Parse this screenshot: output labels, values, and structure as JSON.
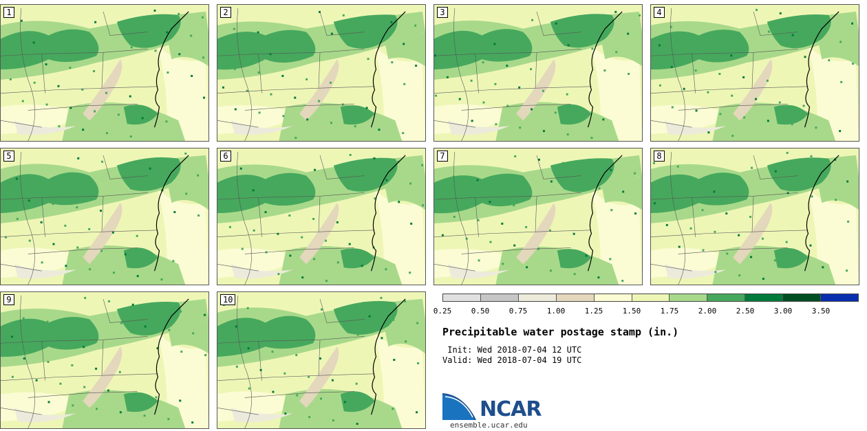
{
  "panels": [
    {
      "label": "1"
    },
    {
      "label": "2"
    },
    {
      "label": "3"
    },
    {
      "label": "4"
    },
    {
      "label": "5"
    },
    {
      "label": "6"
    },
    {
      "label": "7"
    },
    {
      "label": "8"
    },
    {
      "label": "9"
    },
    {
      "label": "10"
    }
  ],
  "colorbar": {
    "ticks": [
      "0.25",
      "0.50",
      "0.75",
      "1.00",
      "1.25",
      "1.50",
      "1.75",
      "2.00",
      "2.50",
      "3.00",
      "3.50"
    ],
    "colors": [
      "#e0e0e0",
      "#c6c6c6",
      "#ecebdb",
      "#e3d7bc",
      "#fbfcd4",
      "#eef6b6",
      "#a8d98a",
      "#46a85d",
      "#007a3a",
      "#004f24",
      "#0a2fae"
    ]
  },
  "title": "Precipitable water postage stamp (in.)",
  "init_text": " Init: Wed 2018-07-04 12 UTC",
  "valid_text": "Valid: Wed 2018-07-04 19 UTC",
  "logo": {
    "text": "NCAR",
    "site": "ensemble.ucar.edu"
  },
  "icons": {
    "logo": "ncar-logo-icon"
  }
}
